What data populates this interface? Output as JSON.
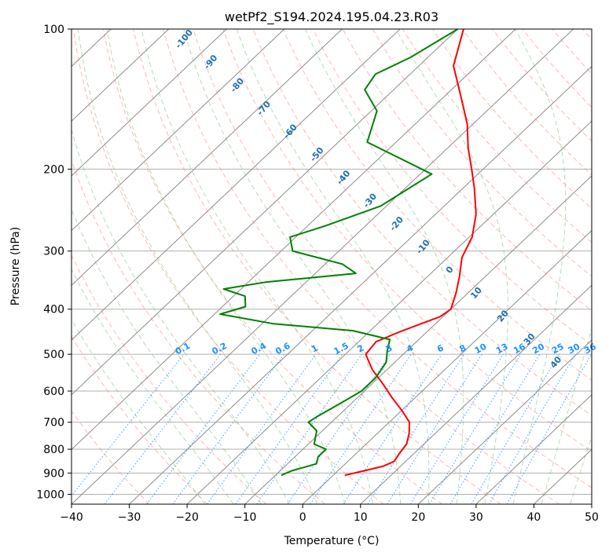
{
  "chart_data": {
    "type": "line",
    "title": "wetPf2_S194.2024.195.04.23.R03",
    "xlabel": "Temperature (°C)",
    "ylabel": "Pressure (hPa)",
    "xlim": [
      -40,
      50
    ],
    "ylim": [
      1050,
      100
    ],
    "y_scale": "log",
    "grid": true,
    "x_ticks": [
      -40,
      -30,
      -20,
      -10,
      0,
      10,
      20,
      30,
      40,
      50
    ],
    "y_ticks": [
      100,
      200,
      300,
      400,
      500,
      600,
      700,
      800,
      900,
      1000
    ],
    "series": [
      {
        "color": "#ff0000",
        "p": [
          100,
          120,
          140,
          160,
          180,
          200,
          220,
          250,
          280,
          310,
          340,
          370,
          400,
          415,
          430,
          450,
          470,
          500,
          540,
          580,
          620,
          660,
          700,
          740,
          780,
          820,
          850,
          870,
          890,
          910
        ],
        "t": [
          -59,
          -54,
          -47,
          -41,
          -36.5,
          -32,
          -28,
          -23,
          -19.5,
          -17.5,
          -14.5,
          -12,
          -10,
          -10.5,
          -12.5,
          -15,
          -17,
          -16.5,
          -12.5,
          -8,
          -4,
          0,
          3.5,
          5.5,
          7,
          7.5,
          8,
          7,
          4.5,
          2
        ]
      },
      {
        "color": "#008000",
        "p": [
          100,
          115,
          125,
          135,
          150,
          175,
          205,
          240,
          265,
          280,
          300,
          320,
          335,
          350,
          362,
          375,
          395,
          410,
          430,
          445,
          465,
          490,
          520,
          560,
          600,
          640,
          680,
          700,
          730,
          780,
          800,
          830,
          860,
          890,
          910
        ],
        "t": [
          -60,
          -63,
          -66,
          -65,
          -59,
          -55,
          -38,
          -41,
          -47,
          -51,
          -48,
          -37,
          -33,
          -47,
          -53,
          -48,
          -46,
          -49,
          -38,
          -23,
          -15,
          -13.5,
          -11.5,
          -10.5,
          -10.5,
          -12,
          -13.5,
          -14,
          -11,
          -9,
          -6,
          -6,
          -5,
          -8,
          -9
        ]
      }
    ],
    "dry_adiabat_labels": [
      "-100",
      "-90",
      "-80",
      "-70",
      "-60",
      "-50",
      "-40",
      "-30",
      "-20",
      "-10",
      "0",
      "10",
      "20",
      "30",
      "40"
    ],
    "mixing_ratio_labels": [
      "0.1",
      "0.2",
      "0.4",
      "0.6",
      "1",
      "1.5",
      "2",
      "3",
      "4",
      "6",
      "8",
      "10",
      "13",
      "16",
      "20",
      "25",
      "30",
      "36"
    ],
    "legend": "none"
  },
  "colors": {
    "temperature": "#ff0000",
    "dewpoint": "#008000",
    "dry_adiabat": "#fa8072",
    "moist_adiabat": "#6aba6a",
    "mixing_ratio": "#1e90ff",
    "isotherm": "#8c8c8c",
    "isobar": "#b0b0b0"
  }
}
